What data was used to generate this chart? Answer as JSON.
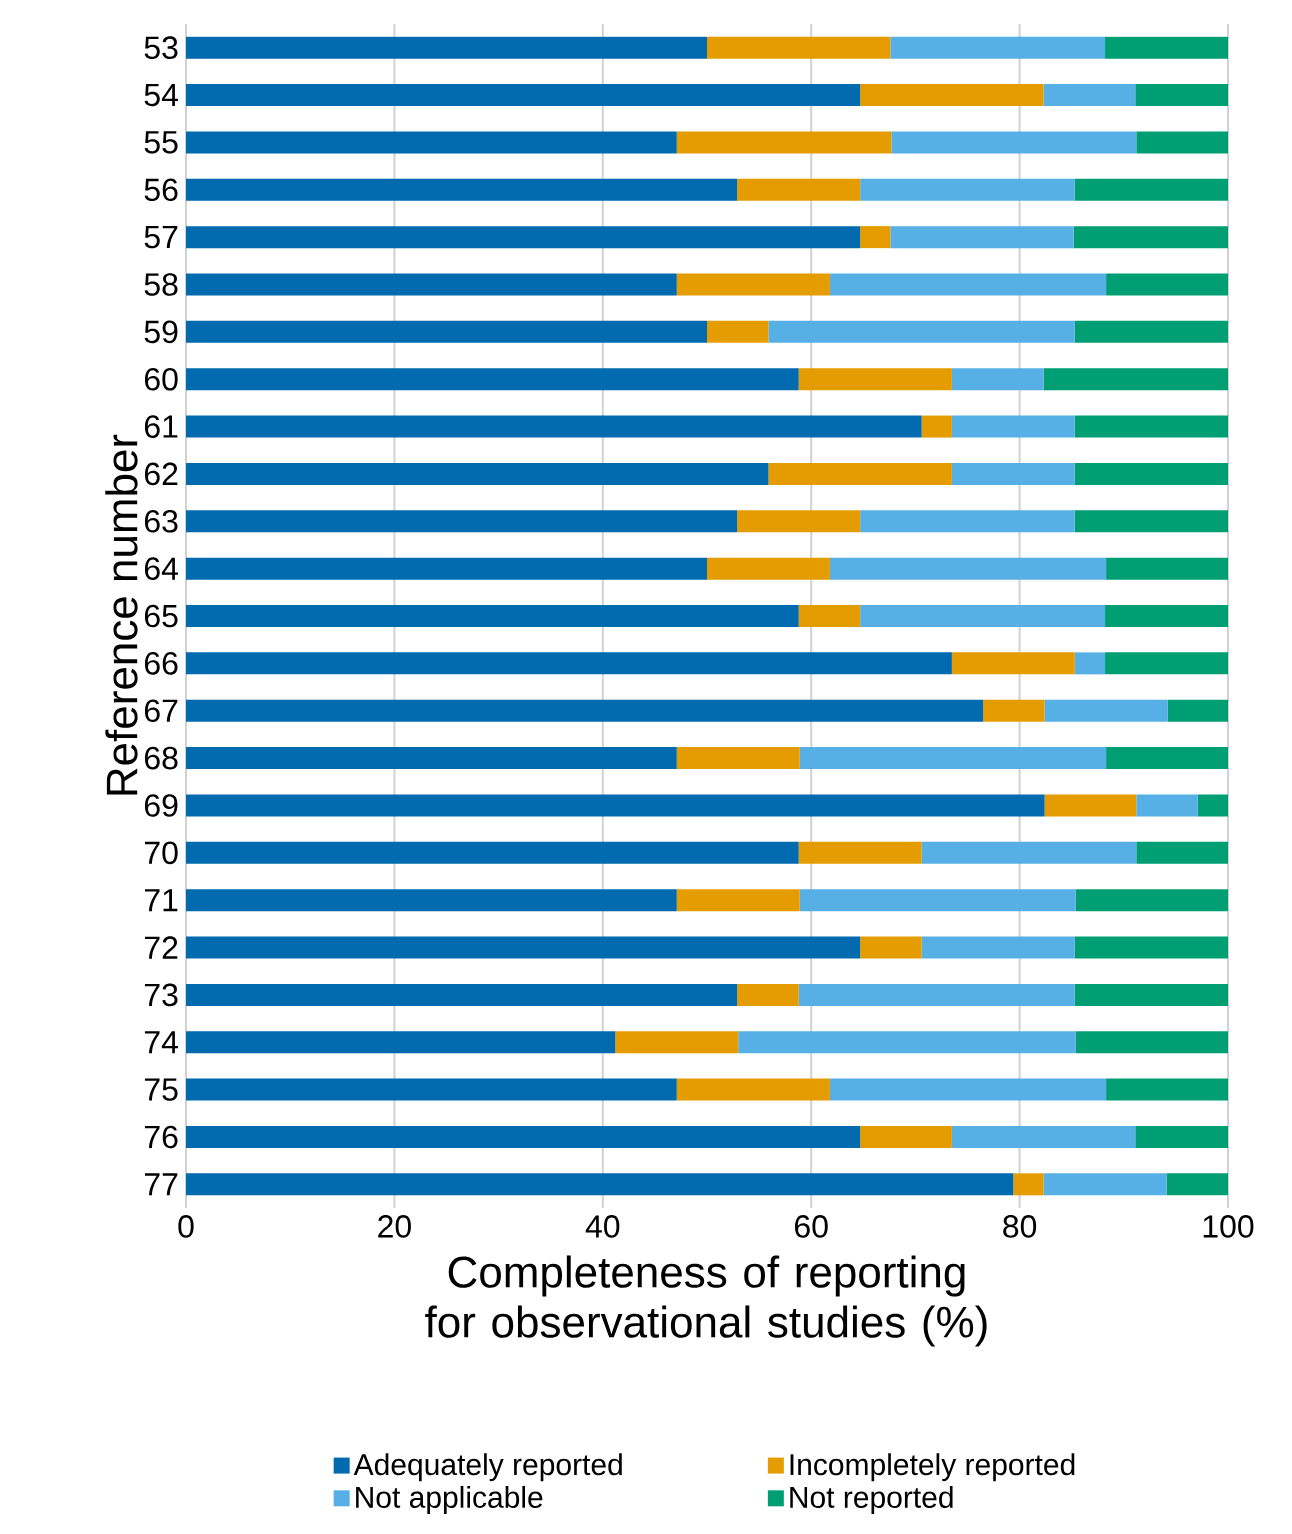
{
  "chart_data": {
    "type": "bar",
    "orientation": "horizontal",
    "stacked": true,
    "xlabel": "Completeness of reporting for observational studies (%)",
    "ylabel": "Reference number",
    "categories": [
      "53",
      "54",
      "55",
      "56",
      "57",
      "58",
      "59",
      "60",
      "61",
      "62",
      "63",
      "64",
      "65",
      "66",
      "67",
      "68",
      "69",
      "70",
      "71",
      "72",
      "73",
      "74",
      "75",
      "76",
      "77"
    ],
    "series": [
      {
        "name": "Adequately reported",
        "color": "#026aae",
        "values": [
          50,
          64.7,
          47.1,
          52.9,
          64.7,
          47.1,
          50,
          58.8,
          70.6,
          55.9,
          52.9,
          50,
          58.8,
          73.5,
          76.5,
          47.1,
          82.4,
          58.8,
          47.1,
          64.7,
          52.9,
          41.2,
          47.1,
          64.7,
          79.4
        ]
      },
      {
        "name": "Incompletely reported",
        "color": "#e59c00",
        "values": [
          17.6,
          17.6,
          20.6,
          11.8,
          2.9,
          14.7,
          5.9,
          14.7,
          2.9,
          17.6,
          11.8,
          11.8,
          5.9,
          11.8,
          5.9,
          11.8,
          8.8,
          11.8,
          11.8,
          5.9,
          5.9,
          11.8,
          14.7,
          8.8,
          2.9
        ]
      },
      {
        "name": "Not applicable",
        "color": "#56b0e6",
        "values": [
          20.6,
          8.8,
          23.5,
          20.6,
          17.6,
          26.5,
          29.4,
          8.8,
          11.8,
          11.8,
          20.6,
          26.5,
          23.5,
          2.9,
          11.8,
          29.4,
          5.9,
          20.6,
          26.5,
          14.7,
          26.5,
          32.4,
          26.5,
          17.6,
          11.8
        ]
      },
      {
        "name": "Not reported",
        "color": "#009e73",
        "values": [
          11.8,
          8.9,
          8.8,
          14.7,
          14.8,
          11.7,
          14.7,
          17.7,
          14.7,
          14.7,
          14.7,
          11.7,
          11.8,
          11.8,
          5.8,
          11.7,
          2.9,
          8.8,
          14.6,
          14.7,
          14.7,
          14.6,
          11.7,
          8.9,
          5.9
        ]
      }
    ],
    "xlim": [
      0,
      100
    ],
    "xticks": [
      0,
      20,
      40,
      60,
      80,
      100
    ],
    "grid": "x",
    "legend": "bottom"
  }
}
